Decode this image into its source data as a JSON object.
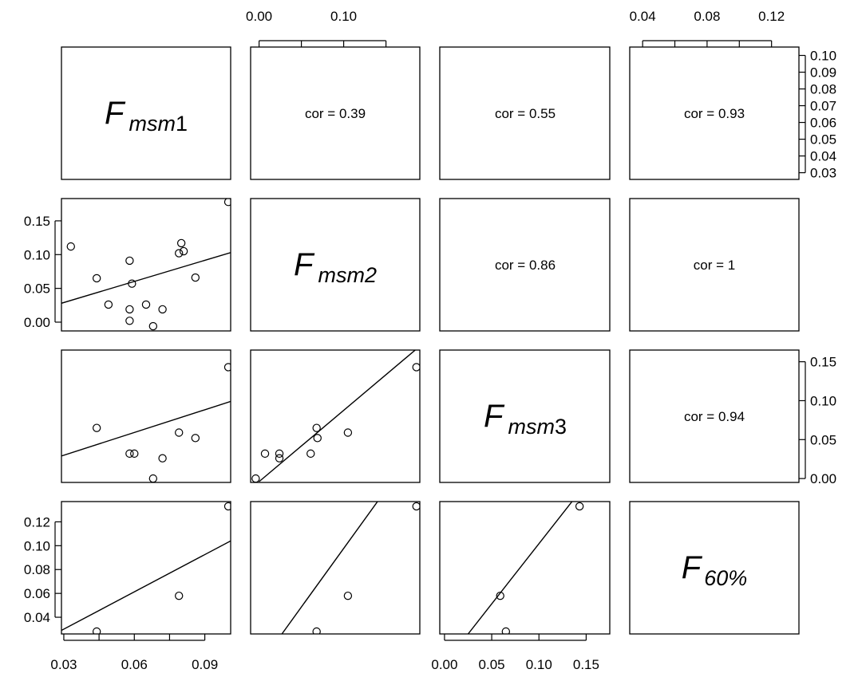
{
  "chart_data": {
    "type": "scatter",
    "matrix_type": "pairs",
    "variables": [
      {
        "symbol": "F",
        "subscript": "msm",
        "suffix": "1"
      },
      {
        "symbol": "F",
        "subscript": "msm2",
        "suffix": ""
      },
      {
        "symbol": "F",
        "subscript": "msm",
        "suffix": "3"
      },
      {
        "symbol": "F",
        "subscript": "60%",
        "suffix": ""
      }
    ],
    "correlations": [
      {
        "row": 1,
        "col": 2,
        "label": "cor = 0.39"
      },
      {
        "row": 1,
        "col": 3,
        "label": "cor = 0.55"
      },
      {
        "row": 1,
        "col": 4,
        "label": "cor = 0.93"
      },
      {
        "row": 2,
        "col": 3,
        "label": "cor = 0.86"
      },
      {
        "row": 2,
        "col": 4,
        "label": "cor = 1"
      },
      {
        "row": 3,
        "col": 4,
        "label": "cor = 0.94"
      }
    ],
    "axes": {
      "x_top": [
        {
          "col": 2,
          "ticks": [
            0.0,
            0.05,
            0.1,
            0.15
          ],
          "labels": [
            "0.00",
            "",
            "0.10",
            ""
          ]
        },
        {
          "col": 4,
          "ticks": [
            0.04,
            0.06,
            0.08,
            0.1,
            0.12
          ],
          "labels": [
            "0.04",
            "",
            "0.08",
            "",
            "0.12"
          ]
        }
      ],
      "x_bottom": [
        {
          "col": 1,
          "ticks": [
            0.03,
            0.045,
            0.06,
            0.075,
            0.09
          ],
          "labels": [
            "0.03",
            "",
            "0.06",
            "",
            "0.09"
          ]
        },
        {
          "col": 3,
          "ticks": [
            0.0,
            0.05,
            0.1,
            0.15
          ],
          "labels": [
            "0.00",
            "0.05",
            "0.10",
            "0.15"
          ]
        }
      ],
      "y_left": [
        {
          "row": 2,
          "ticks": [
            0.0,
            0.05,
            0.1,
            0.15
          ],
          "labels": [
            "0.00",
            "0.05",
            "0.10",
            "0.15"
          ]
        },
        {
          "row": 4,
          "ticks": [
            0.04,
            0.06,
            0.08,
            0.1,
            0.12
          ],
          "labels": [
            "0.04",
            "0.06",
            "0.08",
            "0.10",
            "0.12"
          ]
        }
      ],
      "y_right": [
        {
          "row": 1,
          "ticks": [
            0.03,
            0.04,
            0.05,
            0.06,
            0.07,
            0.08,
            0.09,
            0.1
          ],
          "labels": [
            "0.03",
            "0.04",
            "0.05",
            "0.06",
            "0.07",
            "0.08",
            "0.09",
            "0.10"
          ]
        },
        {
          "row": 3,
          "ticks": [
            0.0,
            0.05,
            0.1,
            0.15
          ],
          "labels": [
            "0.00",
            "0.05",
            "0.10",
            "0.15"
          ]
        }
      ]
    },
    "panels": [
      {
        "row": 2,
        "col": 1,
        "xlim": [
          0.029,
          0.101
        ],
        "ylim": [
          -0.013,
          0.183
        ],
        "points": [
          [
            0.033,
            0.112
          ],
          [
            0.044,
            0.065
          ],
          [
            0.049,
            0.026
          ],
          [
            0.058,
            0.091
          ],
          [
            0.059,
            0.057
          ],
          [
            0.058,
            0.019
          ],
          [
            0.058,
            0.002
          ],
          [
            0.065,
            0.026
          ],
          [
            0.068,
            -0.006
          ],
          [
            0.072,
            0.019
          ],
          [
            0.079,
            0.102
          ],
          [
            0.08,
            0.117
          ],
          [
            0.081,
            0.105
          ],
          [
            0.086,
            0.066
          ],
          [
            0.1,
            0.178
          ]
        ],
        "fit_line": [
          [
            0.029,
            0.028
          ],
          [
            0.101,
            0.103
          ]
        ]
      },
      {
        "row": 3,
        "col": 1,
        "xlim": [
          0.029,
          0.101
        ],
        "ylim": [
          -0.005,
          0.165
        ],
        "points": [
          [
            0.044,
            0.065
          ],
          [
            0.058,
            0.032
          ],
          [
            0.06,
            0.032
          ],
          [
            0.068,
            0.0
          ],
          [
            0.072,
            0.026
          ],
          [
            0.079,
            0.059
          ],
          [
            0.08,
            0.171
          ],
          [
            0.086,
            0.052
          ],
          [
            0.1,
            0.143
          ]
        ],
        "fit_line": [
          [
            0.029,
            0.029
          ],
          [
            0.101,
            0.099
          ]
        ]
      },
      {
        "row": 4,
        "col": 1,
        "xlim": [
          0.029,
          0.101
        ],
        "ylim": [
          0.026,
          0.137
        ],
        "points": [
          [
            0.044,
            0.028
          ],
          [
            0.079,
            0.058
          ],
          [
            0.1,
            0.133
          ]
        ],
        "fit_line": [
          [
            0.029,
            0.029
          ],
          [
            0.101,
            0.104
          ]
        ]
      },
      {
        "row": 3,
        "col": 2,
        "xlim": [
          -0.01,
          0.19
        ],
        "ylim": [
          -0.005,
          0.165
        ],
        "points": [
          [
            -0.004,
            0.0
          ],
          [
            0.007,
            0.032
          ],
          [
            0.024,
            0.032
          ],
          [
            0.024,
            0.026
          ],
          [
            0.061,
            0.032
          ],
          [
            0.068,
            0.065
          ],
          [
            0.069,
            0.052
          ],
          [
            0.105,
            0.059
          ],
          [
            0.126,
            0.171
          ],
          [
            0.186,
            0.143
          ]
        ],
        "fit_line": [
          [
            0.0,
            -0.004
          ],
          [
            0.19,
            0.17
          ]
        ]
      },
      {
        "row": 4,
        "col": 2,
        "xlim": [
          -0.01,
          0.19
        ],
        "ylim": [
          0.026,
          0.137
        ],
        "points": [
          [
            0.068,
            0.028
          ],
          [
            0.105,
            0.058
          ],
          [
            0.186,
            0.133
          ]
        ],
        "fit_line": [
          [
            0.027,
            0.026
          ],
          [
            0.14,
            0.137
          ]
        ]
      },
      {
        "row": 4,
        "col": 3,
        "xlim": [
          -0.005,
          0.175
        ],
        "ylim": [
          0.026,
          0.137
        ],
        "points": [
          [
            0.059,
            0.058
          ],
          [
            0.065,
            0.028
          ],
          [
            0.143,
            0.133
          ]
        ],
        "fit_line": [
          [
            0.025,
            0.026
          ],
          [
            0.135,
            0.137
          ]
        ]
      }
    ]
  }
}
